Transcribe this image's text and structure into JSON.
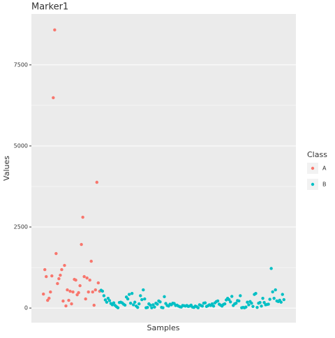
{
  "chart_data": {
    "type": "scatter",
    "title": "Marker1",
    "xlabel": "Samples",
    "ylabel": "Values",
    "legend_title": "Class",
    "legend": "right",
    "grid": true,
    "ylim": [
      -450,
      9070
    ],
    "yticks": [
      0,
      2500,
      5000,
      7500
    ],
    "series": [
      {
        "name": "A",
        "color": "#F8766D",
        "values": [
          431,
          1185,
          970,
          237,
          302,
          496,
          991,
          6487,
          8578,
          1681,
          754,
          905,
          1013,
          1185,
          216,
          1315,
          65,
          560,
          237,
          517,
          129,
          496,
          884,
          862,
          409,
          474,
          690,
          1961,
          2802,
          970,
          280,
          927,
          496,
          862,
          1444,
          496,
          86,
          560,
          3879,
          776,
          517
        ]
      },
      {
        "name": "B",
        "color": "#00BFC4",
        "values": [
          550,
          520,
          380,
          250,
          180,
          300,
          230,
          140,
          100,
          160,
          80,
          40,
          10,
          170,
          180,
          160,
          120,
          90,
          340,
          280,
          420,
          150,
          450,
          100,
          180,
          60,
          20,
          130,
          380,
          260,
          560,
          280,
          10,
          20,
          130,
          90,
          10,
          100,
          30,
          150,
          120,
          220,
          190,
          20,
          10,
          350,
          140,
          80,
          60,
          120,
          100,
          150,
          140,
          80,
          90,
          60,
          40,
          30,
          80,
          70,
          60,
          80,
          50,
          60,
          90,
          30,
          20,
          60,
          40,
          10,
          100,
          80,
          60,
          150,
          160,
          50,
          70,
          100,
          80,
          130,
          60,
          160,
          200,
          220,
          120,
          90,
          60,
          110,
          130,
          250,
          300,
          260,
          190,
          360,
          80,
          130,
          150,
          230,
          220,
          380,
          10,
          20,
          10,
          30,
          180,
          100,
          200,
          150,
          50,
          420,
          450,
          20,
          150,
          170,
          60,
          300,
          170,
          100,
          110,
          120,
          270,
          1220,
          500,
          300,
          560,
          220,
          200,
          240,
          180,
          420,
          260
        ]
      }
    ]
  }
}
